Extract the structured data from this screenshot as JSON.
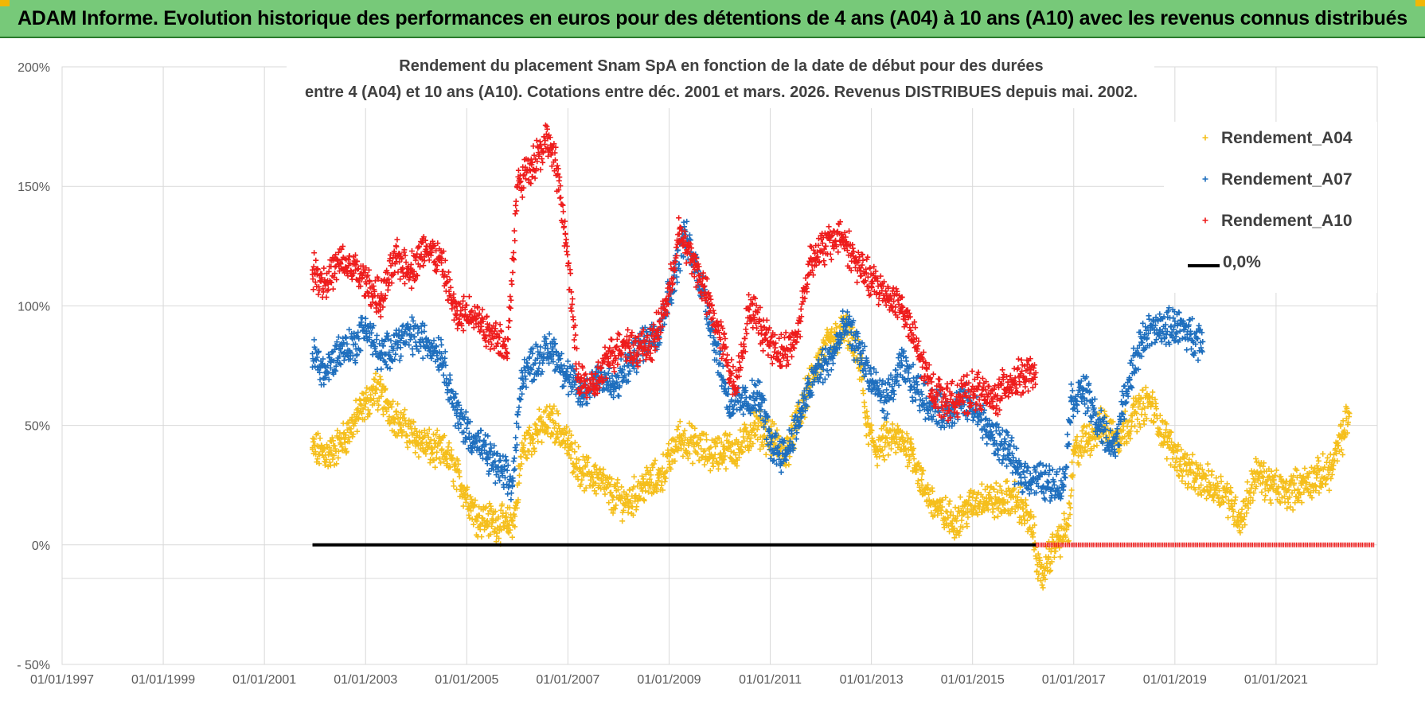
{
  "banner": {
    "text": "ADAM Informe. Evolution historique des performances en euros pour des détentions de 4 ans (A04) à 10 ans (A10) avec les revenus connus distribués"
  },
  "chart_data": {
    "type": "scatter",
    "title_line1": "Rendement du placement Snam SpA en fonction de la date de début pour des durées",
    "title_line2": "entre 4 (A04) et 10 ans (A10). Cotations entre déc. 2001 et mars. 2026. Revenus DISTRIBUES depuis mai. 2002.",
    "xlim": [
      1997.0,
      2023.0
    ],
    "ylim": [
      -50,
      200
    ],
    "y_ticks": [
      -50,
      0,
      50,
      100,
      150,
      200
    ],
    "y_tick_labels": [
      "- 50%",
      "0%",
      "50%",
      "100%",
      "150%",
      "200%"
    ],
    "x_ticks": [
      1997,
      1999,
      2001,
      2003,
      2005,
      2007,
      2009,
      2011,
      2013,
      2015,
      2017,
      2019,
      2021
    ],
    "x_tick_labels": [
      "01/01/1997",
      "01/01/1999",
      "01/01/2001",
      "01/01/2003",
      "01/01/2005",
      "01/01/2007",
      "01/01/2009",
      "01/01/2011",
      "01/01/2013",
      "01/01/2015",
      "01/01/2017",
      "01/01/2019",
      "01/01/2021"
    ],
    "legend_position": "top-right",
    "series": [
      {
        "name": "Rendement_A04",
        "color": "#f5bf1c",
        "x_range": [
          2001.95,
          2022.45
        ],
        "points": [
          [
            2001.95,
            40
          ],
          [
            2002.3,
            38
          ],
          [
            2002.6,
            45
          ],
          [
            2002.9,
            56
          ],
          [
            2003.2,
            65
          ],
          [
            2003.4,
            60
          ],
          [
            2003.7,
            50
          ],
          [
            2004.0,
            45
          ],
          [
            2004.3,
            40
          ],
          [
            2004.6,
            38
          ],
          [
            2004.9,
            25
          ],
          [
            2005.2,
            12
          ],
          [
            2005.5,
            10
          ],
          [
            2005.8,
            8
          ],
          [
            2005.95,
            12
          ],
          [
            2006.1,
            40
          ],
          [
            2006.4,
            48
          ],
          [
            2006.7,
            52
          ],
          [
            2007.0,
            42
          ],
          [
            2007.3,
            30
          ],
          [
            2007.6,
            28
          ],
          [
            2007.9,
            20
          ],
          [
            2008.2,
            18
          ],
          [
            2008.5,
            25
          ],
          [
            2008.8,
            28
          ],
          [
            2009.0,
            35
          ],
          [
            2009.2,
            45
          ],
          [
            2009.5,
            42
          ],
          [
            2009.8,
            38
          ],
          [
            2010.1,
            40
          ],
          [
            2010.4,
            40
          ],
          [
            2010.7,
            50
          ],
          [
            2011.0,
            45
          ],
          [
            2011.3,
            38
          ],
          [
            2011.6,
            55
          ],
          [
            2011.9,
            75
          ],
          [
            2012.2,
            85
          ],
          [
            2012.5,
            90
          ],
          [
            2012.8,
            75
          ],
          [
            2012.9,
            50
          ],
          [
            2013.1,
            40
          ],
          [
            2013.4,
            45
          ],
          [
            2013.8,
            40
          ],
          [
            2014.0,
            25
          ],
          [
            2014.3,
            15
          ],
          [
            2014.6,
            10
          ],
          [
            2014.9,
            15
          ],
          [
            2015.2,
            20
          ],
          [
            2015.5,
            18
          ],
          [
            2015.8,
            20
          ],
          [
            2016.0,
            15
          ],
          [
            2016.2,
            5
          ],
          [
            2016.35,
            -15
          ],
          [
            2016.5,
            -5
          ],
          [
            2016.7,
            2
          ],
          [
            2016.9,
            8
          ],
          [
            2017.0,
            38
          ],
          [
            2017.3,
            45
          ],
          [
            2017.6,
            50
          ],
          [
            2017.9,
            45
          ],
          [
            2018.2,
            55
          ],
          [
            2018.5,
            60
          ],
          [
            2018.8,
            45
          ],
          [
            2019.1,
            35
          ],
          [
            2019.4,
            28
          ],
          [
            2019.7,
            25
          ],
          [
            2020.0,
            22
          ],
          [
            2020.3,
            10
          ],
          [
            2020.6,
            30
          ],
          [
            2020.9,
            25
          ],
          [
            2021.2,
            22
          ],
          [
            2021.5,
            25
          ],
          [
            2021.8,
            28
          ],
          [
            2022.1,
            32
          ],
          [
            2022.35,
            48
          ],
          [
            2022.45,
            55
          ]
        ]
      },
      {
        "name": "Rendement_A07",
        "color": "#1f6fbe",
        "x_range": [
          2001.95,
          2019.55
        ],
        "points": [
          [
            2001.95,
            80
          ],
          [
            2002.2,
            72
          ],
          [
            2002.5,
            82
          ],
          [
            2002.8,
            84
          ],
          [
            2003.0,
            92
          ],
          [
            2003.3,
            78
          ],
          [
            2003.6,
            85
          ],
          [
            2003.9,
            88
          ],
          [
            2004.2,
            85
          ],
          [
            2004.5,
            80
          ],
          [
            2004.8,
            55
          ],
          [
            2005.1,
            45
          ],
          [
            2005.4,
            38
          ],
          [
            2005.7,
            30
          ],
          [
            2005.9,
            25
          ],
          [
            2006.1,
            72
          ],
          [
            2006.4,
            78
          ],
          [
            2006.7,
            82
          ],
          [
            2007.0,
            70
          ],
          [
            2007.3,
            62
          ],
          [
            2007.6,
            72
          ],
          [
            2007.9,
            65
          ],
          [
            2008.2,
            75
          ],
          [
            2008.5,
            85
          ],
          [
            2008.8,
            90
          ],
          [
            2009.1,
            112
          ],
          [
            2009.3,
            130
          ],
          [
            2009.5,
            118
          ],
          [
            2009.7,
            105
          ],
          [
            2009.9,
            85
          ],
          [
            2010.2,
            58
          ],
          [
            2010.5,
            60
          ],
          [
            2010.8,
            62
          ],
          [
            2011.0,
            42
          ],
          [
            2011.3,
            38
          ],
          [
            2011.6,
            55
          ],
          [
            2011.9,
            72
          ],
          [
            2012.2,
            78
          ],
          [
            2012.5,
            92
          ],
          [
            2012.8,
            80
          ],
          [
            2013.0,
            68
          ],
          [
            2013.3,
            60
          ],
          [
            2013.6,
            75
          ],
          [
            2013.9,
            65
          ],
          [
            2014.2,
            58
          ],
          [
            2014.5,
            55
          ],
          [
            2014.8,
            60
          ],
          [
            2015.1,
            55
          ],
          [
            2015.4,
            45
          ],
          [
            2015.7,
            40
          ],
          [
            2015.9,
            30
          ],
          [
            2016.2,
            28
          ],
          [
            2016.5,
            26
          ],
          [
            2016.8,
            25
          ],
          [
            2016.95,
            60
          ],
          [
            2017.2,
            65
          ],
          [
            2017.5,
            50
          ],
          [
            2017.8,
            40
          ],
          [
            2018.1,
            70
          ],
          [
            2018.4,
            88
          ],
          [
            2018.7,
            90
          ],
          [
            2019.0,
            92
          ],
          [
            2019.3,
            88
          ],
          [
            2019.55,
            85
          ]
        ]
      },
      {
        "name": "Rendement_A10",
        "color": "#ee1c1c",
        "x_range": [
          2001.95,
          2016.25
        ],
        "points": [
          [
            2001.95,
            115
          ],
          [
            2002.2,
            110
          ],
          [
            2002.5,
            118
          ],
          [
            2002.8,
            115
          ],
          [
            2003.0,
            110
          ],
          [
            2003.3,
            102
          ],
          [
            2003.6,
            120
          ],
          [
            2003.9,
            115
          ],
          [
            2004.2,
            125
          ],
          [
            2004.5,
            118
          ],
          [
            2004.8,
            95
          ],
          [
            2005.1,
            98
          ],
          [
            2005.4,
            90
          ],
          [
            2005.6,
            88
          ],
          [
            2005.8,
            80
          ],
          [
            2006.0,
            150
          ],
          [
            2006.3,
            160
          ],
          [
            2006.6,
            170
          ],
          [
            2006.8,
            155
          ],
          [
            2006.95,
            130
          ],
          [
            2007.2,
            70
          ],
          [
            2007.5,
            65
          ],
          [
            2007.8,
            78
          ],
          [
            2008.1,
            85
          ],
          [
            2008.4,
            82
          ],
          [
            2008.7,
            85
          ],
          [
            2009.0,
            105
          ],
          [
            2009.2,
            130
          ],
          [
            2009.5,
            118
          ],
          [
            2009.8,
            100
          ],
          [
            2010.1,
            82
          ],
          [
            2010.3,
            65
          ],
          [
            2010.6,
            100
          ],
          [
            2010.9,
            88
          ],
          [
            2011.2,
            80
          ],
          [
            2011.5,
            85
          ],
          [
            2011.8,
            120
          ],
          [
            2012.1,
            125
          ],
          [
            2012.4,
            130
          ],
          [
            2012.7,
            118
          ],
          [
            2013.0,
            110
          ],
          [
            2013.3,
            105
          ],
          [
            2013.6,
            100
          ],
          [
            2013.9,
            82
          ],
          [
            2014.2,
            65
          ],
          [
            2014.5,
            60
          ],
          [
            2014.8,
            62
          ],
          [
            2015.1,
            65
          ],
          [
            2015.4,
            60
          ],
          [
            2015.7,
            68
          ],
          [
            2016.0,
            70
          ],
          [
            2016.25,
            72
          ]
        ]
      },
      {
        "name": "0,0%",
        "color": "#000000",
        "type": "line",
        "x": [
          2001.95,
          2016.25
        ],
        "y": [
          0,
          0
        ]
      }
    ],
    "red_zero_line": {
      "x": [
        2016.25,
        2022.95
      ],
      "y": [
        0,
        0
      ],
      "color": "#ee1c1c"
    }
  }
}
